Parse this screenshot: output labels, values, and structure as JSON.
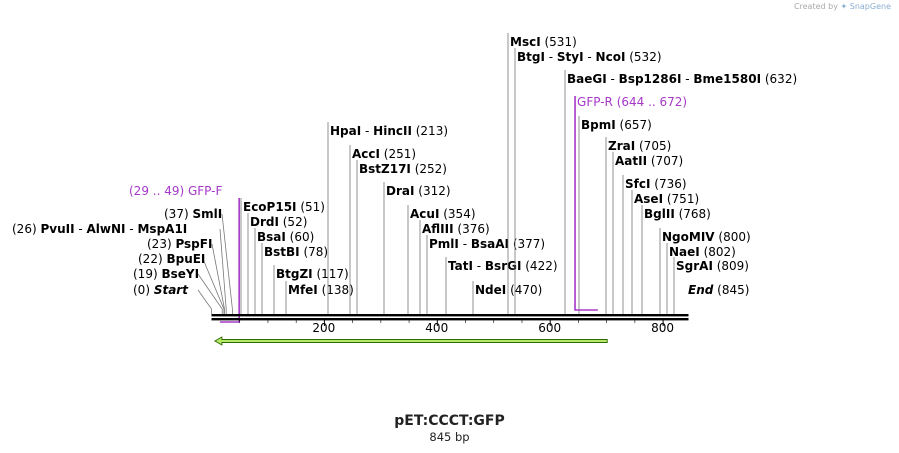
{
  "watermark": {
    "prefix": "Created by",
    "brand": "SnapGene"
  },
  "plasmid": {
    "name": "pET:CCCT:GFP",
    "length_label": "845 bp"
  },
  "axis": {
    "ticks": [
      200,
      400,
      600,
      800
    ]
  },
  "sites": [
    {
      "pos": 0,
      "text": "(0)",
      "names": [
        "Start"
      ]
    },
    {
      "pos": 19,
      "text": "(19)",
      "names": [
        "BseYI"
      ]
    },
    {
      "pos": 22,
      "text": "(22)",
      "names": [
        "BpuEI"
      ]
    },
    {
      "pos": 23,
      "text": "(23)",
      "names": [
        "PspFI"
      ]
    },
    {
      "pos": 26,
      "text": "(26)",
      "names": [
        "PvuII",
        "AlwNI",
        "MspA1I"
      ]
    },
    {
      "pos": 37,
      "text": "(37)",
      "names": [
        "SmlI"
      ]
    },
    {
      "pos": 51,
      "text": "(51)",
      "names": [
        "EcoP15I"
      ]
    },
    {
      "pos": 52,
      "text": "(52)",
      "names": [
        "DrdI"
      ]
    },
    {
      "pos": 60,
      "text": "(60)",
      "names": [
        "BsaI"
      ]
    },
    {
      "pos": 78,
      "text": "(78)",
      "names": [
        "BstBI"
      ]
    },
    {
      "pos": 117,
      "text": "(117)",
      "names": [
        "BtgZI"
      ]
    },
    {
      "pos": 138,
      "text": "(138)",
      "names": [
        "MfeI"
      ]
    },
    {
      "pos": 213,
      "text": "(213)",
      "names": [
        "HpaI",
        "HincII"
      ]
    },
    {
      "pos": 251,
      "text": "(251)",
      "names": [
        "AccI"
      ]
    },
    {
      "pos": 252,
      "text": "(252)",
      "names": [
        "BstZ17I"
      ]
    },
    {
      "pos": 312,
      "text": "(312)",
      "names": [
        "DraI"
      ]
    },
    {
      "pos": 354,
      "text": "(354)",
      "names": [
        "AcuI"
      ]
    },
    {
      "pos": 376,
      "text": "(376)",
      "names": [
        "AflIII"
      ]
    },
    {
      "pos": 377,
      "text": "(377)",
      "names": [
        "PmlI",
        "BsaAI"
      ]
    },
    {
      "pos": 422,
      "text": "(422)",
      "names": [
        "TatI",
        "BsrGI"
      ]
    },
    {
      "pos": 470,
      "text": "(470)",
      "names": [
        "NdeI"
      ]
    },
    {
      "pos": 531,
      "text": "(531)",
      "names": [
        "MscI"
      ]
    },
    {
      "pos": 532,
      "text": "(532)",
      "names": [
        "BtgI",
        "StyI",
        "NcoI"
      ]
    },
    {
      "pos": 632,
      "text": "(632)",
      "names": [
        "BaeGI",
        "Bsp1286I",
        "Bme1580I"
      ]
    },
    {
      "pos": 657,
      "text": "(657)",
      "names": [
        "BpmI"
      ]
    },
    {
      "pos": 705,
      "text": "(705)",
      "names": [
        "ZraI"
      ]
    },
    {
      "pos": 707,
      "text": "(707)",
      "names": [
        "AatII"
      ]
    },
    {
      "pos": 736,
      "text": "(736)",
      "names": [
        "SfcI"
      ]
    },
    {
      "pos": 751,
      "text": "(751)",
      "names": [
        "AseI"
      ]
    },
    {
      "pos": 768,
      "text": "(768)",
      "names": [
        "BglII"
      ]
    },
    {
      "pos": 800,
      "text": "(800)",
      "names": [
        "NgoMIV"
      ]
    },
    {
      "pos": 802,
      "text": "(802)",
      "names": [
        "NaeI"
      ]
    },
    {
      "pos": 809,
      "text": "(809)",
      "names": [
        "SgrAI"
      ]
    },
    {
      "pos": 845,
      "text": "(845)",
      "names": [
        "End"
      ]
    }
  ],
  "primers": [
    {
      "name": "GFP-F",
      "range": "(29 .. 49)",
      "start": 29,
      "end": 49,
      "strand": "forward"
    },
    {
      "name": "GFP-R",
      "range": "(644 .. 672)",
      "start": 644,
      "end": 672,
      "strand": "reverse"
    }
  ],
  "feature": {
    "start": 6,
    "end": 701,
    "direction": "reverse"
  },
  "colors": {
    "primer": "#a638c8",
    "feature_fill": "#b5e96a",
    "feature_stroke": "#2f6a00",
    "backbone": "#000000",
    "leader": "#777777"
  }
}
